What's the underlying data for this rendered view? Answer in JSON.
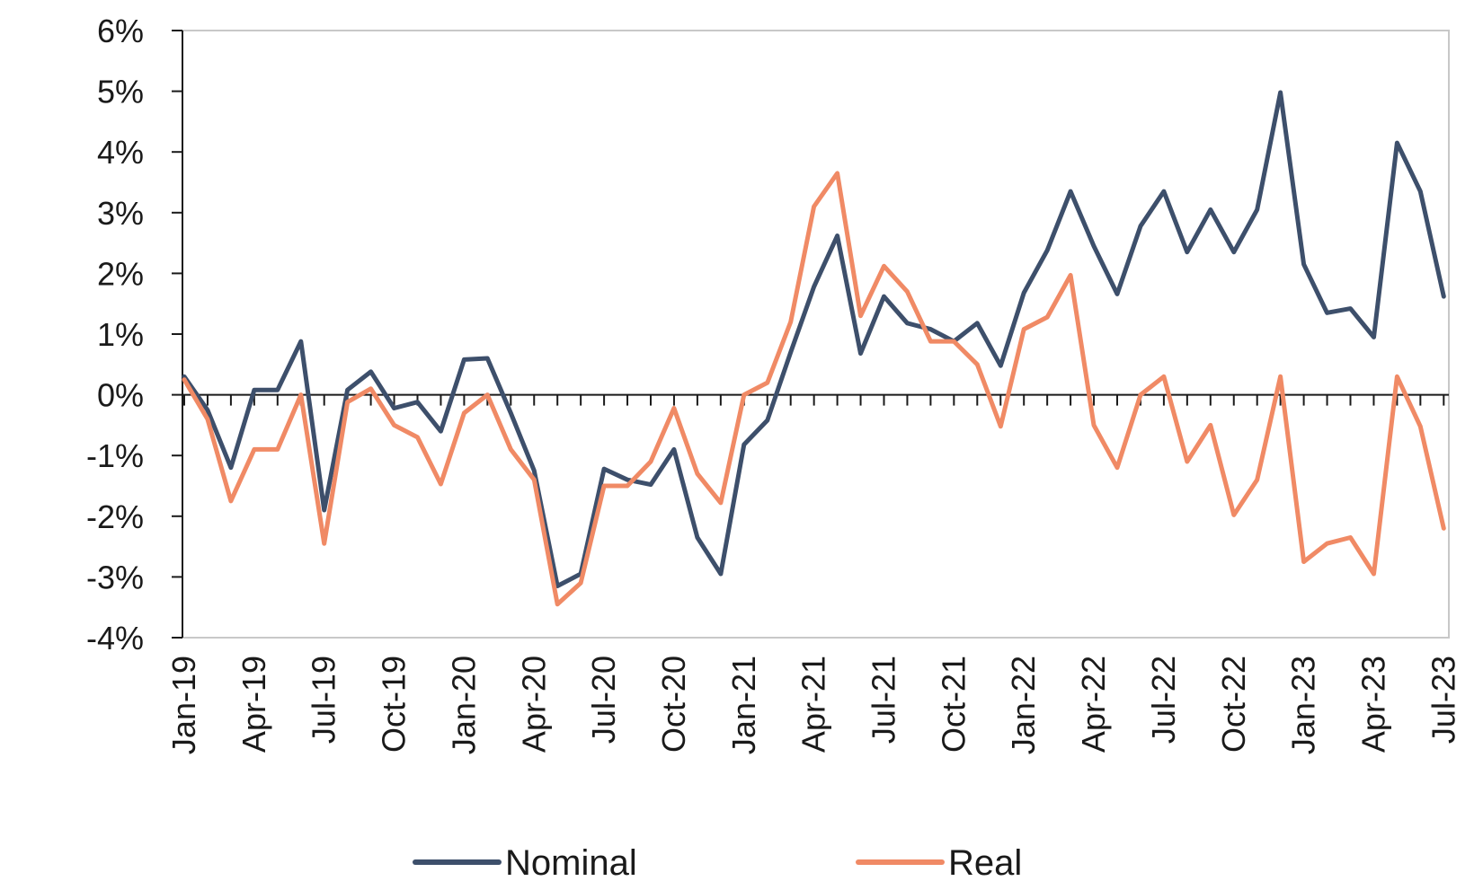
{
  "chart_data": {
    "type": "line",
    "x": [
      "Jan-19",
      "Feb-19",
      "Mar-19",
      "Apr-19",
      "May-19",
      "Jun-19",
      "Jul-19",
      "Aug-19",
      "Sep-19",
      "Oct-19",
      "Nov-19",
      "Dec-19",
      "Jan-20",
      "Feb-20",
      "Mar-20",
      "Apr-20",
      "May-20",
      "Jun-20",
      "Jul-20",
      "Aug-20",
      "Sep-20",
      "Oct-20",
      "Nov-20",
      "Dec-20",
      "Jan-21",
      "Feb-21",
      "Mar-21",
      "Apr-21",
      "May-21",
      "Jun-21",
      "Jul-21",
      "Aug-21",
      "Sep-21",
      "Oct-21",
      "Nov-21",
      "Dec-21",
      "Jan-22",
      "Feb-22",
      "Mar-22",
      "Apr-22",
      "May-22",
      "Jun-22",
      "Jul-22",
      "Aug-22",
      "Sep-22",
      "Oct-22",
      "Nov-22",
      "Dec-22",
      "Jan-23",
      "Feb-23",
      "Mar-23",
      "Apr-23",
      "May-23",
      "Jun-23",
      "Jul-23"
    ],
    "xtick_labels": [
      "Jan-19",
      "Apr-19",
      "Jul-19",
      "Oct-19",
      "Jan-20",
      "Apr-20",
      "Jul-20",
      "Oct-20",
      "Jan-21",
      "Apr-21",
      "Jul-21",
      "Oct-21",
      "Jan-22",
      "Apr-22",
      "Jul-22",
      "Oct-22",
      "Jan-23",
      "Apr-23",
      "Jul-23"
    ],
    "ytick_labels": [
      "6%",
      "5%",
      "4%",
      "3%",
      "2%",
      "1%",
      "0%",
      "-1%",
      "-2%",
      "-3%",
      "-4%"
    ],
    "ylim": [
      -4,
      6
    ],
    "grid": false,
    "legend_position": "bottom",
    "series": [
      {
        "name": "Nominal",
        "color": "#3d4f6b",
        "values": [
          0.3,
          -0.25,
          -1.2,
          0.08,
          0.08,
          0.88,
          -1.9,
          0.08,
          0.38,
          -0.22,
          -0.12,
          -0.6,
          0.58,
          0.6,
          -0.3,
          -1.25,
          -3.15,
          -2.95,
          -1.22,
          -1.4,
          -1.48,
          -0.9,
          -2.35,
          -2.95,
          -0.82,
          -0.42,
          0.7,
          1.78,
          2.62,
          0.68,
          1.62,
          1.18,
          1.08,
          0.88,
          1.18,
          0.48,
          1.68,
          2.38,
          3.35,
          2.45,
          1.66,
          2.78,
          3.35,
          2.35,
          3.05,
          2.35,
          3.05,
          4.98,
          2.15,
          1.35,
          1.42,
          0.95,
          4.15,
          3.35,
          1.62
        ]
      },
      {
        "name": "Real",
        "color": "#f08a65",
        "values": [
          0.25,
          -0.4,
          -1.75,
          -0.9,
          -0.9,
          0.0,
          -2.45,
          -0.12,
          0.1,
          -0.5,
          -0.7,
          -1.47,
          -0.3,
          0.0,
          -0.9,
          -1.4,
          -3.45,
          -3.1,
          -1.5,
          -1.5,
          -1.1,
          -0.22,
          -1.3,
          -1.78,
          0.0,
          0.2,
          1.2,
          3.1,
          3.65,
          1.3,
          2.12,
          1.7,
          0.88,
          0.88,
          0.5,
          -0.52,
          1.08,
          1.28,
          1.97,
          -0.5,
          -1.2,
          0.0,
          0.3,
          -1.1,
          -0.5,
          -1.98,
          -1.4,
          0.3,
          -2.75,
          -2.45,
          -2.35,
          -2.95,
          0.3,
          -0.52,
          -2.2
        ]
      }
    ]
  }
}
